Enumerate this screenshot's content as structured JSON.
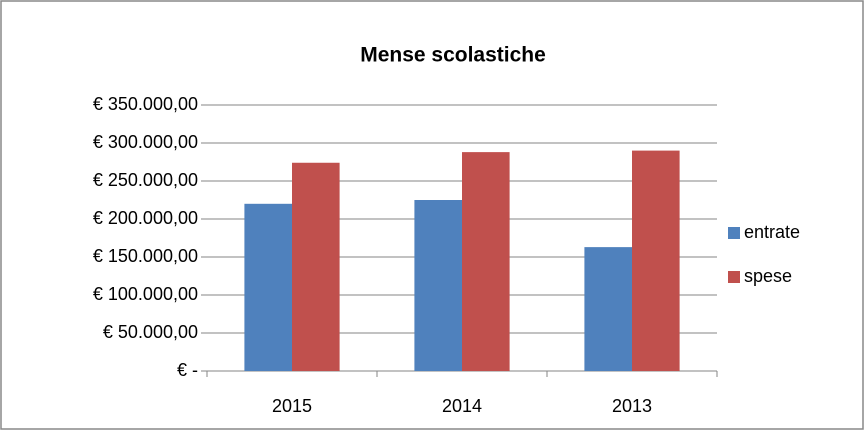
{
  "chart_data": {
    "type": "bar",
    "title": "Mense scolastiche",
    "categories": [
      "2015",
      "2014",
      "2013"
    ],
    "series": [
      {
        "name": "entrate",
        "color": "#4f81bd",
        "values": [
          220000,
          225000,
          163000
        ]
      },
      {
        "name": "spese",
        "color": "#c0504d",
        "values": [
          274000,
          288000,
          290000
        ]
      }
    ],
    "ylim": [
      0,
      350000
    ],
    "yticks": [
      {
        "value": 0,
        "label": "€ -"
      },
      {
        "value": 50000,
        "label": "€ 50.000,00"
      },
      {
        "value": 100000,
        "label": "€ 100.000,00"
      },
      {
        "value": 150000,
        "label": "€ 150.000,00"
      },
      {
        "value": 200000,
        "label": "€ 200.000,00"
      },
      {
        "value": 250000,
        "label": "€ 250.000,00"
      },
      {
        "value": 300000,
        "label": "€ 300.000,00"
      },
      {
        "value": 350000,
        "label": "€ 350.000,00"
      }
    ],
    "grid": true,
    "legend": "right"
  }
}
